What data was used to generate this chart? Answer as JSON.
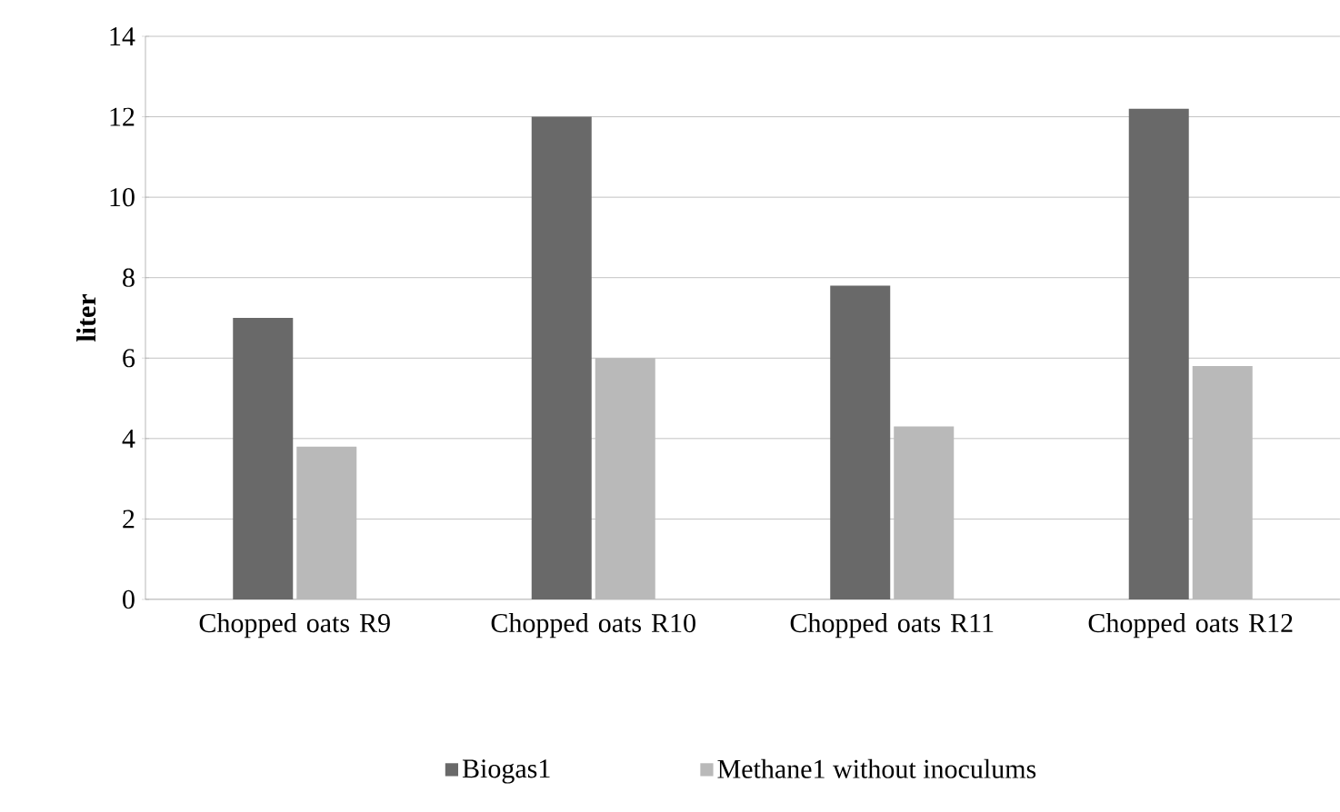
{
  "chart_data": {
    "type": "bar",
    "ylabel": "liter",
    "categories": [
      "Chopped oats R9",
      "Chopped oats R10",
      "Chopped oats R11",
      "Chopped oats R12"
    ],
    "series": [
      {
        "name": "Biogas1",
        "color": "#696969",
        "values": [
          7.0,
          12.0,
          7.8,
          12.2
        ]
      },
      {
        "name": "Methane1 without inoculums",
        "color": "#b9b9b9",
        "values": [
          3.8,
          6.0,
          4.3,
          5.8
        ]
      }
    ],
    "ylim": [
      0,
      14
    ],
    "yticks": [
      0,
      2,
      4,
      6,
      8,
      10,
      12,
      14
    ],
    "grid": "y",
    "legend": "bottom"
  }
}
